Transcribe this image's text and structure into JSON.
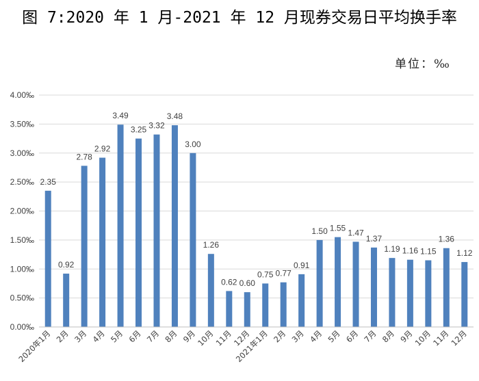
{
  "header": {
    "title": "图 7:2020 年 1 月-2021 年 12 月现券交易日平均换手率",
    "unit": "单位：‰"
  },
  "colors": {
    "bar": "#4F81BD",
    "grid": "#D9D9D9",
    "axis": "#BFBFBF",
    "text": "#404040"
  },
  "chart_data": {
    "type": "bar",
    "title": "图 7:2020 年 1 月-2021 年 12 月现券交易日平均换手率",
    "xlabel": "",
    "ylabel": "",
    "unit": "单位：‰",
    "ylim": [
      0,
      4.0
    ],
    "grid": true,
    "y_ticks": [
      "0.00‰",
      "0.50‰",
      "1.00‰",
      "1.50‰",
      "2.00‰",
      "2.50‰",
      "3.00‰",
      "3.50‰",
      "4.00‰"
    ],
    "categories": [
      "2020年1月",
      "2月",
      "3月",
      "4月",
      "5月",
      "6月",
      "7月",
      "8月",
      "9月",
      "10月",
      "11月",
      "12月",
      "2021年1月",
      "2月",
      "3月",
      "4月",
      "5月",
      "6月",
      "7月",
      "8月",
      "9月",
      "10月",
      "11月",
      "12月"
    ],
    "values": [
      2.35,
      0.92,
      2.78,
      2.92,
      3.49,
      3.25,
      3.32,
      3.48,
      3.0,
      1.26,
      0.62,
      0.6,
      0.75,
      0.77,
      0.91,
      1.5,
      1.55,
      1.47,
      1.37,
      1.19,
      1.16,
      1.15,
      1.36,
      1.12
    ],
    "data_labels": [
      "2.35",
      "0.92",
      "2.78",
      "2.92",
      "3.49",
      "3.25",
      "3.32",
      "3.48",
      "3.00",
      "1.26",
      "0.62",
      "0.60",
      "0.75",
      "0.77",
      "0.91",
      "1.50",
      "1.55",
      "1.47",
      "1.37",
      "1.19",
      "1.16",
      "1.15",
      "1.36",
      "1.12"
    ]
  }
}
